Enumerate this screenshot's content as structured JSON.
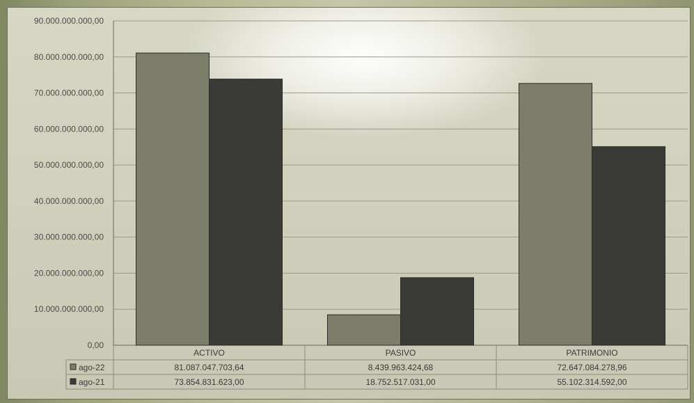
{
  "chart_data": {
    "type": "bar",
    "categories": [
      "ACTIVO",
      "PASIVO",
      "PATRIMONIO"
    ],
    "series": [
      {
        "name": "ago-22",
        "values": [
          81087047703.64,
          8439963424.68,
          72647084278.96
        ],
        "labels": [
          "81.087.047.703,64",
          "8.439.963.424,68",
          "72.647.084.278,96"
        ],
        "color": "#7d7e69"
      },
      {
        "name": "ago-21",
        "values": [
          73854831623.0,
          18752517031.0,
          55102314592.0
        ],
        "labels": [
          "73.854.831.623,00",
          "18.752.517.031,00",
          "55.102.314.592,00"
        ],
        "color": "#3a3a36"
      }
    ],
    "ylim": [
      0,
      90000000000
    ],
    "yticks": [
      0,
      10000000000,
      20000000000,
      30000000000,
      40000000000,
      50000000000,
      60000000000,
      70000000000,
      80000000000,
      90000000000
    ],
    "ytick_labels": [
      "0,00",
      "10.000.000.000,00",
      "20.000.000.000,00",
      "30.000.000.000,00",
      "40.000.000.000,00",
      "50.000.000.000,00",
      "60.000.000.000,00",
      "70.000.000.000,00",
      "80.000.000.000,00",
      "90.000.000.000,00"
    ],
    "grid": true,
    "legend": "data-table"
  }
}
